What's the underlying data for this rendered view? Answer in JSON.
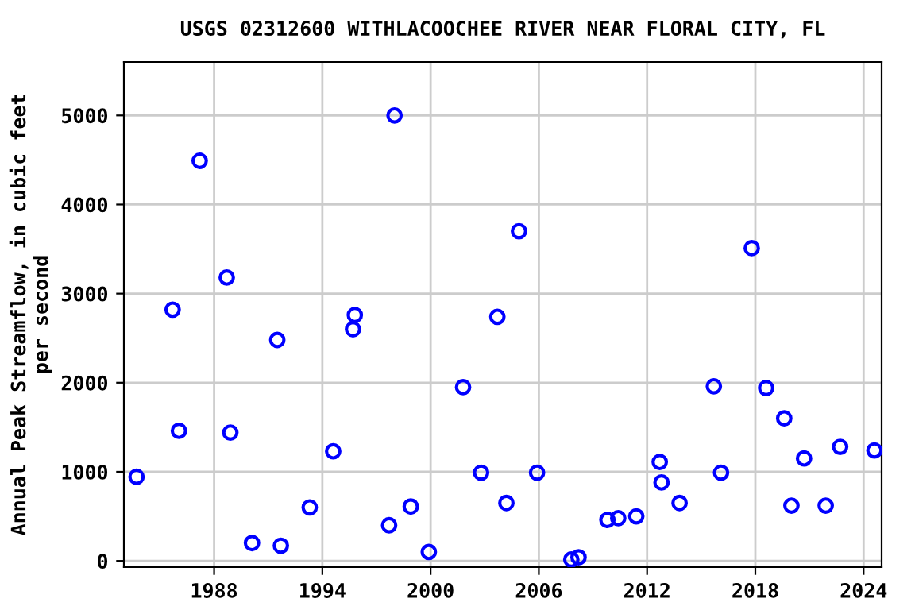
{
  "chart_data": {
    "type": "scatter",
    "title": "USGS 02312600 WITHLACOOCHEE RIVER NEAR FLORAL CITY, FL",
    "ylabel": "Annual Peak Streamflow, in cubic feet\nper second",
    "x": [
      1983.7,
      1985.7,
      1986.05,
      1987.2,
      1988.7,
      1988.9,
      1990.1,
      1991.5,
      1991.7,
      1993.3,
      1994.6,
      1995.7,
      1995.8,
      1997.7,
      1998.0,
      1998.9,
      1999.9,
      2001.8,
      2002.8,
      2003.7,
      2004.2,
      2004.9,
      2005.9,
      2007.8,
      2008.2,
      2009.8,
      2010.4,
      2011.4,
      2012.7,
      2012.8,
      2013.8,
      2015.7,
      2016.1,
      2017.8,
      2018.6,
      2019.6,
      2020.0,
      2020.7,
      2021.9,
      2022.7,
      2024.6
    ],
    "values": [
      944,
      2820,
      1460,
      4490,
      3180,
      1440,
      200,
      2480,
      170,
      600,
      1230,
      2600,
      2760,
      400,
      5000,
      610,
      100,
      1950,
      990,
      2740,
      650,
      3700,
      990,
      15,
      40,
      460,
      480,
      500,
      1110,
      880,
      650,
      1960,
      990,
      3510,
      1940,
      1600,
      620,
      1150,
      620,
      1280,
      1240
    ],
    "color": "#0000ff",
    "marker": "circle",
    "xlim": [
      1983,
      2025
    ],
    "xticks": [
      1988,
      1994,
      2000,
      2006,
      2012,
      2018,
      2024
    ],
    "ylim": [
      -70,
      5600
    ],
    "yticks": [
      0,
      1000,
      2000,
      3000,
      4000,
      5000
    ],
    "grid": true
  }
}
